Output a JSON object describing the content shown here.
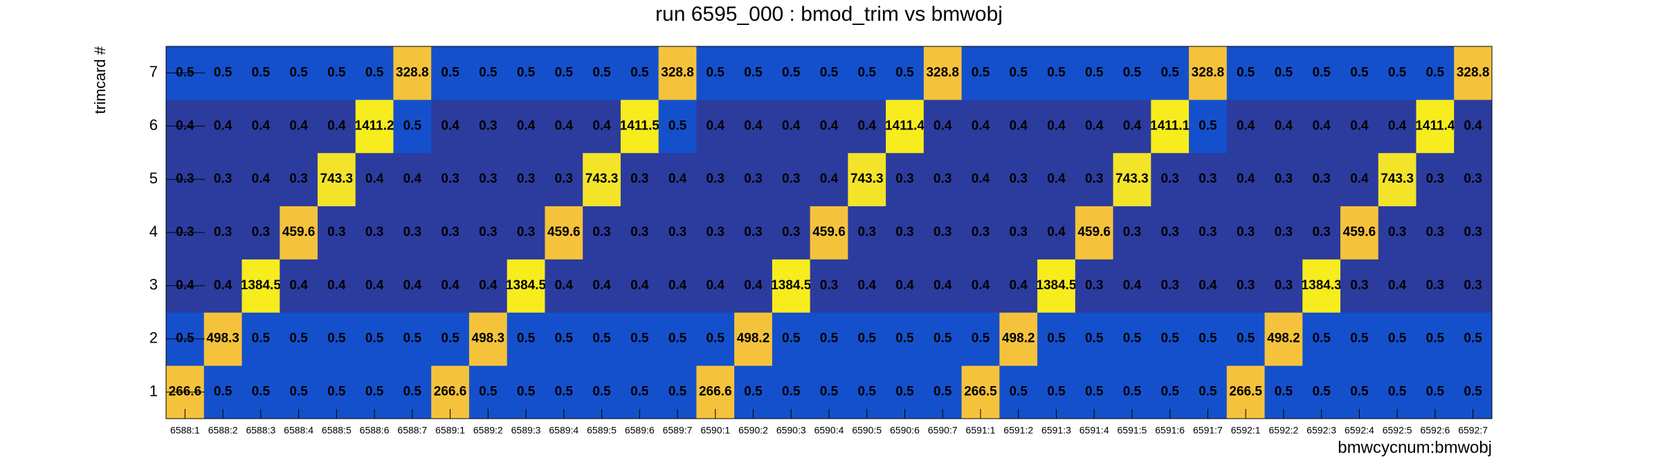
{
  "chart_data": {
    "type": "heatmap",
    "title": "run 6595_000 : bmod_trim vs bmwobj",
    "x_label": "bmwcycnum:bmwobj",
    "y_label": "trimcard #",
    "x_categories": [
      "6588:1",
      "6588:2",
      "6588:3",
      "6588:4",
      "6588:5",
      "6588:6",
      "6588:7",
      "6589:1",
      "6589:2",
      "6589:3",
      "6589:4",
      "6589:5",
      "6589:6",
      "6589:7",
      "6590:1",
      "6590:2",
      "6590:3",
      "6590:4",
      "6590:5",
      "6590:6",
      "6590:7",
      "6591:1",
      "6591:2",
      "6591:3",
      "6591:4",
      "6591:5",
      "6591:6",
      "6591:7",
      "6592:1",
      "6592:2",
      "6592:3",
      "6592:4",
      "6592:5",
      "6592:6",
      "6592:7"
    ],
    "y_categories": [
      "1",
      "2",
      "3",
      "4",
      "5",
      "6",
      "7"
    ],
    "values": [
      [
        266.6,
        0.5,
        0.5,
        0.5,
        0.5,
        0.5,
        0.5,
        266.6,
        0.5,
        0.5,
        0.5,
        0.5,
        0.5,
        0.5,
        266.6,
        0.5,
        0.5,
        0.5,
        0.5,
        0.5,
        0.5,
        266.5,
        0.5,
        0.5,
        0.5,
        0.5,
        0.5,
        0.5,
        266.5,
        0.5,
        0.5,
        0.5,
        0.5,
        0.5,
        0.5
      ],
      [
        0.5,
        498.3,
        0.5,
        0.5,
        0.5,
        0.5,
        0.5,
        0.5,
        498.3,
        0.5,
        0.5,
        0.5,
        0.5,
        0.5,
        0.5,
        498.2,
        0.5,
        0.5,
        0.5,
        0.5,
        0.5,
        0.5,
        498.2,
        0.5,
        0.5,
        0.5,
        0.5,
        0.5,
        0.5,
        498.2,
        0.5,
        0.5,
        0.5,
        0.5,
        0.5
      ],
      [
        0.4,
        0.4,
        1384.5,
        0.4,
        0.4,
        0.4,
        0.4,
        0.4,
        0.4,
        1384.5,
        0.4,
        0.4,
        0.4,
        0.4,
        0.4,
        0.4,
        1384.5,
        0.3,
        0.4,
        0.4,
        0.4,
        0.4,
        0.4,
        1384.5,
        0.3,
        0.4,
        0.3,
        0.4,
        0.3,
        0.3,
        1384.3,
        0.3,
        0.4,
        0.3,
        0.3
      ],
      [
        0.3,
        0.3,
        0.3,
        459.6,
        0.3,
        0.3,
        0.3,
        0.3,
        0.3,
        0.3,
        459.6,
        0.3,
        0.3,
        0.3,
        0.3,
        0.3,
        0.3,
        459.6,
        0.3,
        0.3,
        0.3,
        0.3,
        0.3,
        0.4,
        459.6,
        0.3,
        0.3,
        0.3,
        0.3,
        0.3,
        0.3,
        459.6,
        0.3,
        0.3,
        0.3
      ],
      [
        0.3,
        0.3,
        0.4,
        0.3,
        743.3,
        0.4,
        0.4,
        0.3,
        0.3,
        0.3,
        0.3,
        743.3,
        0.3,
        0.4,
        0.3,
        0.3,
        0.3,
        0.4,
        743.3,
        0.3,
        0.3,
        0.4,
        0.3,
        0.4,
        0.3,
        743.3,
        0.3,
        0.3,
        0.4,
        0.3,
        0.3,
        0.4,
        743.3,
        0.3,
        0.3
      ],
      [
        0.4,
        0.4,
        0.4,
        0.4,
        0.4,
        1411.2,
        0.5,
        0.4,
        0.3,
        0.4,
        0.4,
        0.4,
        1411.5,
        0.5,
        0.4,
        0.4,
        0.4,
        0.4,
        0.4,
        1411.4,
        0.4,
        0.4,
        0.4,
        0.4,
        0.4,
        0.4,
        1411.1,
        0.5,
        0.4,
        0.4,
        0.4,
        0.4,
        0.4,
        1411.4,
        0.4
      ],
      [
        0.5,
        0.5,
        0.5,
        0.5,
        0.5,
        0.5,
        328.8,
        0.5,
        0.5,
        0.5,
        0.5,
        0.5,
        0.5,
        328.8,
        0.5,
        0.5,
        0.5,
        0.5,
        0.5,
        0.5,
        328.8,
        0.5,
        0.5,
        0.5,
        0.5,
        0.5,
        0.5,
        328.8,
        0.5,
        0.5,
        0.5,
        0.5,
        0.5,
        0.5,
        328.8
      ]
    ]
  }
}
